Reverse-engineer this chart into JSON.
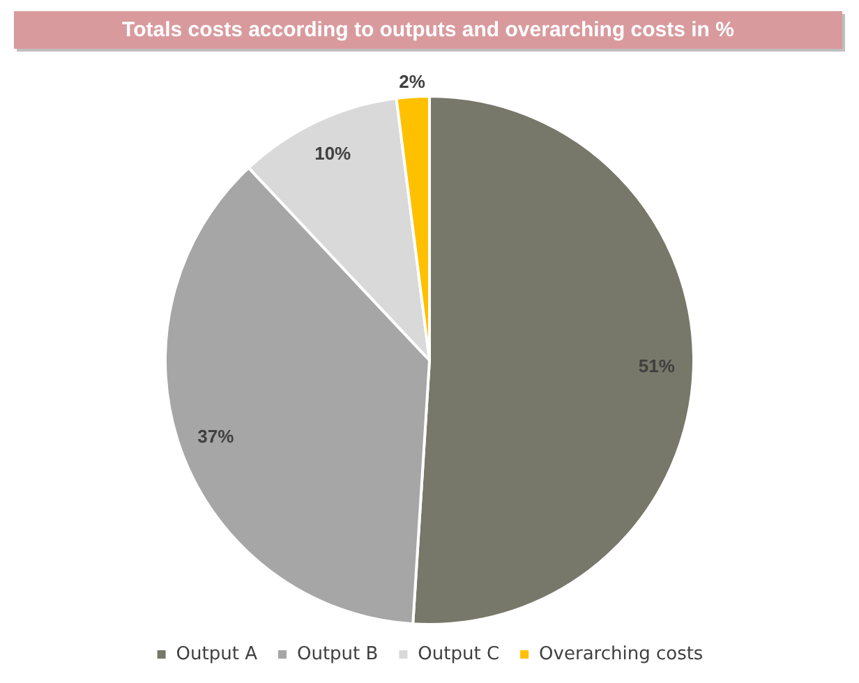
{
  "chart_data": {
    "type": "pie",
    "title": "Totals costs according to outputs and overarching costs in %",
    "categories": [
      "Output A",
      "Output B",
      "Output C",
      "Overarching costs"
    ],
    "values": [
      51,
      37,
      10,
      2
    ],
    "colors": [
      "#77776a",
      "#a6a6a6",
      "#d9d9d9",
      "#ffc000"
    ],
    "value_labels": [
      "51%",
      "37%",
      "10%",
      "2%"
    ],
    "legend": "bottom"
  }
}
